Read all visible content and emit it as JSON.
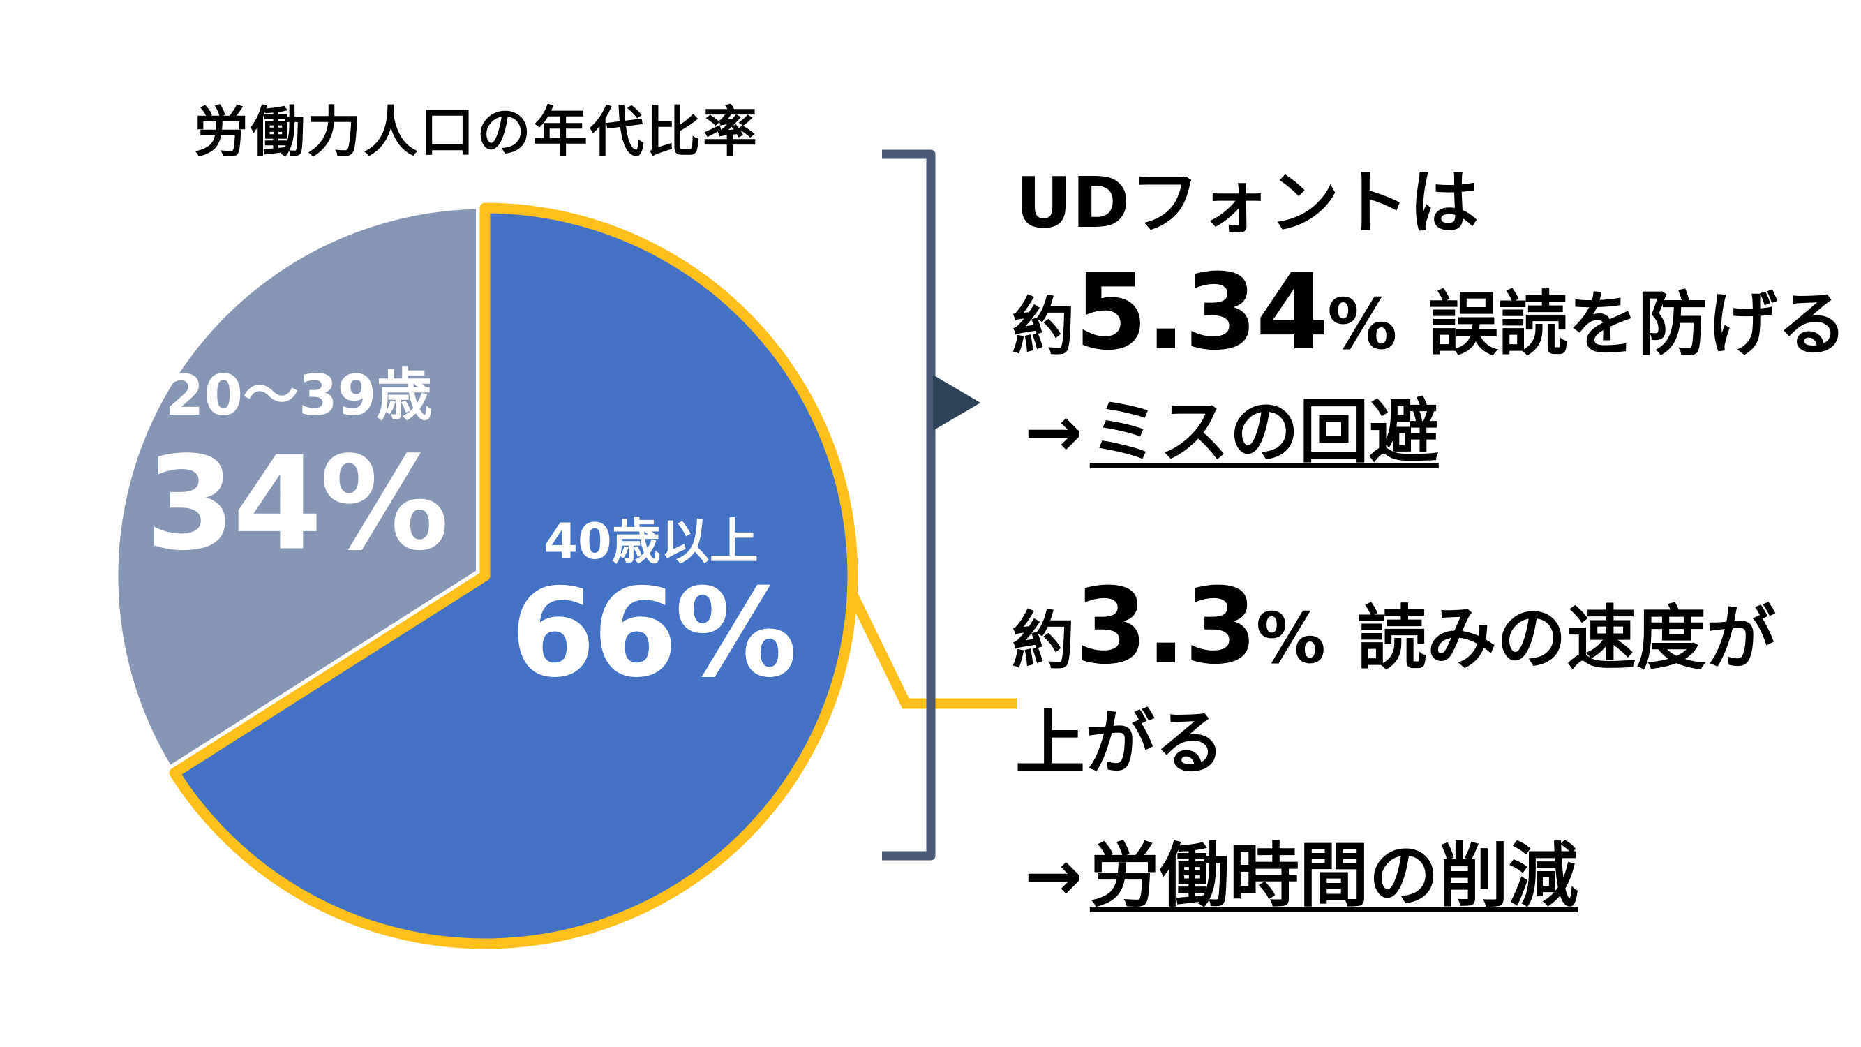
{
  "page": {
    "background": "#FFFFFF"
  },
  "chart_data": {
    "type": "pie",
    "title": "労働力人口の年代比率",
    "unit": "%",
    "direction": "clockwise",
    "start_angle_deg": 0,
    "legend": "none",
    "slices": [
      {
        "label": "20〜39歳",
        "value": 34,
        "value_label": "34%",
        "color": "#8696B3",
        "text_color": "#FFFFFF"
      },
      {
        "label": "40歳以上",
        "value": 66,
        "value_label": "66%",
        "color": "#4472C4",
        "outline_color": "#FFC01E",
        "text_color": "#FFFFFF",
        "emphasized": true
      }
    ]
  },
  "annotations": {
    "bracket_color": "#4A5A72",
    "pointer_color": "#2E4156",
    "callout_color": "#FFC01E",
    "text_color": "#000000",
    "text_lines": {
      "line1": "UDフォントは",
      "line2_prefix": "約",
      "line2_number": "5.34",
      "line2_unit": "%",
      "line2_text": "誤読を防げる",
      "line3_arrow": "→",
      "line3_text": "ミスの回避",
      "line4_prefix": "約",
      "line4_number": "3.3",
      "line4_unit": "%",
      "line4_text": "読みの速度が",
      "line5": "上がる",
      "line6_arrow": "→",
      "line6_text": "労働時間の削減"
    }
  }
}
